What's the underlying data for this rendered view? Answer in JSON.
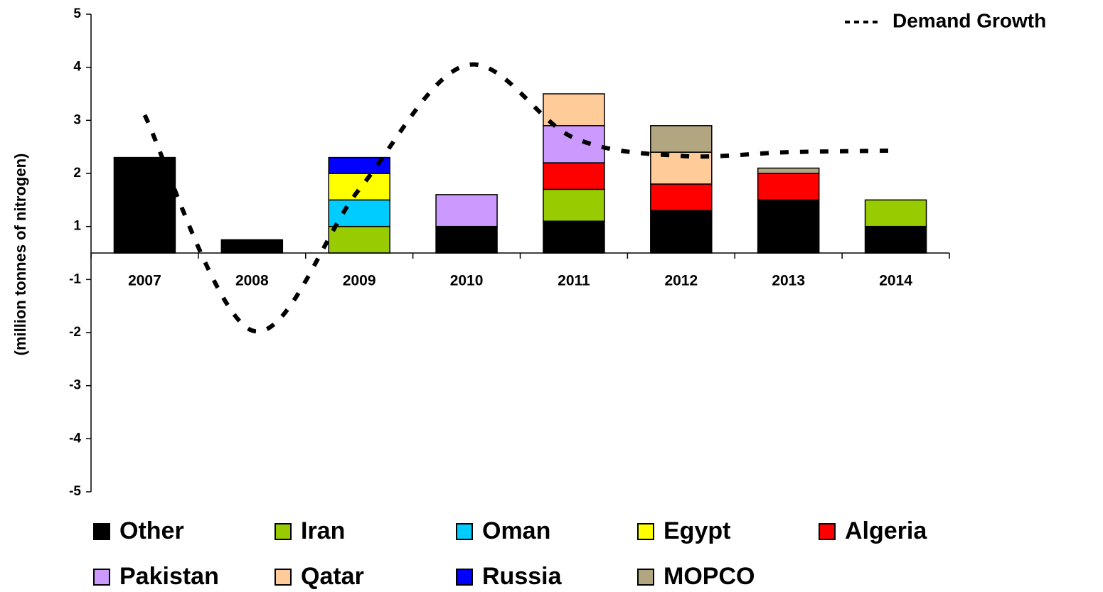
{
  "chart_data": {
    "type": "bar",
    "stacked": true,
    "y_label": "(million  tonnes of nitrogen)",
    "categories": [
      "2007",
      "2008",
      "2009",
      "2010",
      "2011",
      "2012",
      "2013",
      "2014"
    ],
    "ylim": [
      -4,
      5
    ],
    "yticks": [
      5,
      4,
      3,
      2,
      1,
      {
        "value": 0,
        "label": "-1"
      },
      {
        "value": -1,
        "label": "-2"
      },
      {
        "value": -2,
        "label": "-3"
      },
      {
        "value": -3,
        "label": "-4"
      },
      {
        "value": -4,
        "label": "-5"
      }
    ],
    "x_axis_at": 0.5,
    "series": [
      {
        "name": "Other",
        "color": "#000000",
        "values": [
          1.8,
          0.25,
          null,
          0.5,
          0.6,
          0.8,
          1.0,
          0.5
        ]
      },
      {
        "name": "Iran",
        "color": "#99cc00",
        "values": [
          null,
          null,
          0.5,
          null,
          0.6,
          null,
          null,
          0.5
        ]
      },
      {
        "name": "Oman",
        "color": "#00ccff",
        "values": [
          null,
          null,
          0.5,
          null,
          null,
          null,
          null,
          null
        ]
      },
      {
        "name": "Egypt",
        "color": "#ffff00",
        "values": [
          null,
          null,
          0.5,
          null,
          null,
          null,
          null,
          null
        ]
      },
      {
        "name": "Algeria",
        "color": "#ff0000",
        "values": [
          null,
          null,
          null,
          null,
          0.5,
          0.5,
          0.5,
          null
        ]
      },
      {
        "name": "Pakistan",
        "color": "#cc99ff",
        "values": [
          null,
          null,
          null,
          0.6,
          0.7,
          null,
          null,
          null
        ]
      },
      {
        "name": "Qatar",
        "color": "#ffcc99",
        "values": [
          null,
          null,
          null,
          null,
          0.6,
          0.6,
          null,
          null
        ]
      },
      {
        "name": "Russia",
        "color": "#0000ff",
        "values": [
          null,
          null,
          0.3,
          null,
          null,
          null,
          null,
          null
        ]
      },
      {
        "name": "MOPCO",
        "color": "#b2a680",
        "values": [
          null,
          null,
          null,
          null,
          null,
          0.5,
          0.1,
          null
        ]
      }
    ],
    "line_series": {
      "name": "Demand Growth",
      "type": "line",
      "style": "dashed",
      "color": "#000000",
      "values": [
        3.1,
        -0.96,
        1.7,
        4.04,
        2.67,
        2.33,
        2.4,
        2.43
      ]
    },
    "legend": "bottom"
  }
}
